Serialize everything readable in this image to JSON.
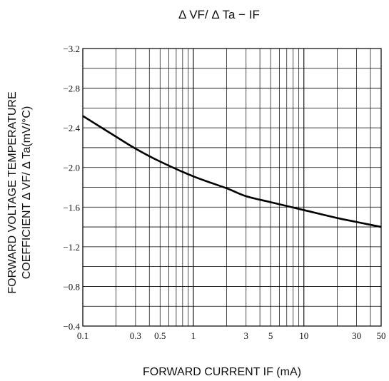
{
  "chart_data": {
    "type": "line",
    "title": "Δ VF/ Δ Ta − IF",
    "xlabel": "FORWARD CURRENT IF (mA)",
    "ylabel_line1": "FORWARD VOLTAGE TEMPERATURE",
    "ylabel_line2": "COEFFICIENT  Δ VF/ Δ Ta(mV/°C)",
    "x_scale": "log",
    "xlim": [
      0.1,
      50
    ],
    "ylim": [
      -0.4,
      -3.2
    ],
    "grid": true,
    "x_ticks": [
      {
        "value": 0.1,
        "label": "0.1"
      },
      {
        "value": 0.3,
        "label": "0.3"
      },
      {
        "value": 0.5,
        "label": "0.5"
      },
      {
        "value": 1,
        "label": "1"
      },
      {
        "value": 3,
        "label": "3"
      },
      {
        "value": 5,
        "label": "5"
      },
      {
        "value": 10,
        "label": "10"
      },
      {
        "value": 30,
        "label": "30"
      },
      {
        "value": 50,
        "label": "50"
      }
    ],
    "y_ticks": [
      {
        "value": -3.2,
        "label": "−3.2"
      },
      {
        "value": -2.8,
        "label": "−2.8"
      },
      {
        "value": -2.4,
        "label": "−2.4"
      },
      {
        "value": -2.0,
        "label": "−2.0"
      },
      {
        "value": -1.6,
        "label": "−1.6"
      },
      {
        "value": -1.2,
        "label": "−1.2"
      },
      {
        "value": -0.8,
        "label": "−0.8"
      },
      {
        "value": -0.4,
        "label": "−0.4"
      }
    ],
    "series": [
      {
        "x": [
          0.1,
          0.2,
          0.3,
          0.5,
          1,
          2,
          3,
          5,
          10,
          20,
          30,
          50
        ],
        "y": [
          -2.52,
          -2.31,
          -2.19,
          -2.06,
          -1.91,
          -1.79,
          -1.71,
          -1.65,
          -1.57,
          -1.49,
          -1.45,
          -1.4
        ]
      }
    ]
  }
}
